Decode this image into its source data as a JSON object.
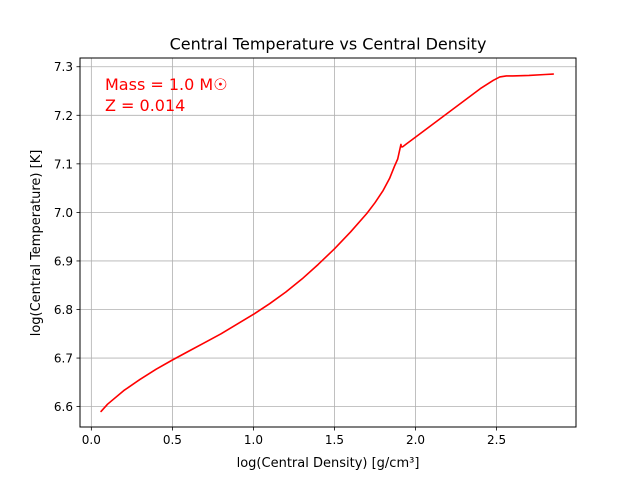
{
  "chart_data": {
    "type": "line",
    "title": "Central Temperature vs Central Density",
    "xlabel": "log(Central Density) [g/cm³]",
    "ylabel": "log(Central Temperature) [K]",
    "xlim": [
      -0.07,
      2.99
    ],
    "ylim": [
      6.558,
      7.318
    ],
    "xticks": [
      0.0,
      0.5,
      1.0,
      1.5,
      2.0,
      2.5
    ],
    "xtick_labels": [
      "0.0",
      "0.5",
      "1.0",
      "1.5",
      "2.0",
      "2.5"
    ],
    "yticks": [
      6.6,
      6.7,
      6.8,
      6.9,
      7.0,
      7.1,
      7.2,
      7.3
    ],
    "ytick_labels": [
      "6.6",
      "6.7",
      "6.8",
      "6.9",
      "7.0",
      "7.1",
      "7.2",
      "7.3"
    ],
    "grid": true,
    "annotation": {
      "lines": [
        "Mass = 1.0 M☉",
        "Z = 0.014"
      ],
      "color": "#ff0000",
      "placement": "top-left"
    },
    "series": [
      {
        "color": "#ff0000",
        "x": [
          0.06,
          0.1,
          0.2,
          0.3,
          0.4,
          0.5,
          0.6,
          0.7,
          0.8,
          0.9,
          1.0,
          1.1,
          1.2,
          1.3,
          1.4,
          1.5,
          1.6,
          1.7,
          1.75,
          1.8,
          1.84,
          1.87,
          1.89,
          1.9,
          1.91,
          1.912,
          1.92,
          1.94,
          2.0,
          2.1,
          2.2,
          2.3,
          2.4,
          2.48,
          2.52,
          2.56,
          2.6,
          2.7,
          2.8,
          2.85
        ],
        "y": [
          6.59,
          6.605,
          6.633,
          6.656,
          6.677,
          6.696,
          6.714,
          6.732,
          6.75,
          6.77,
          6.79,
          6.812,
          6.836,
          6.863,
          6.893,
          6.925,
          6.96,
          6.998,
          7.02,
          7.045,
          7.07,
          7.095,
          7.11,
          7.125,
          7.14,
          7.135,
          7.135,
          7.14,
          7.155,
          7.18,
          7.205,
          7.23,
          7.255,
          7.272,
          7.279,
          7.281,
          7.281,
          7.282,
          7.284,
          7.285
        ]
      }
    ]
  }
}
